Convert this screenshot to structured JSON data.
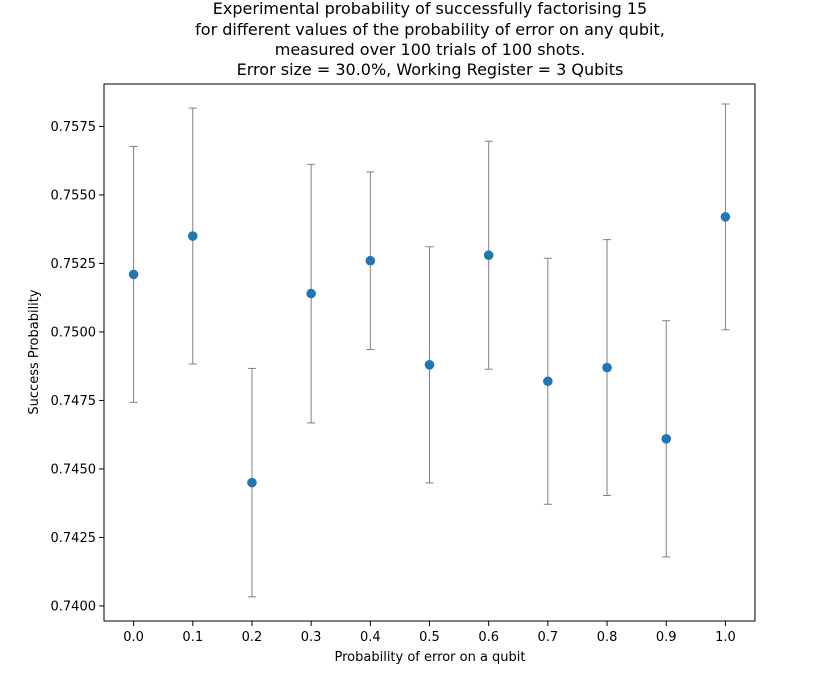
{
  "chart_data": {
    "type": "scatter",
    "title_lines": [
      "Experimental probability of successfully factorising 15",
      "for different values of the probability of error on any qubit,",
      "measured over 100 trials of 100 shots.",
      "Error size = 30.0%, Working Register = 3 Qubits"
    ],
    "xlabel": "Probability of error on a qubit",
    "ylabel": "Success Probability",
    "x_ticks": [
      "0.0",
      "0.1",
      "0.2",
      "0.3",
      "0.4",
      "0.5",
      "0.6",
      "0.7",
      "0.8",
      "0.9",
      "1.0"
    ],
    "y_ticks": [
      "0.7400",
      "0.7425",
      "0.7450",
      "0.7475",
      "0.7500",
      "0.7525",
      "0.7550",
      "0.7575"
    ],
    "xlim": [
      -0.05,
      1.05
    ],
    "ylim": [
      0.73945,
      0.75905
    ],
    "grid": false,
    "legend": "none",
    "point_color": "#1f77b4",
    "errorbar_color": "#808080",
    "points": [
      {
        "x": 0.0,
        "y": 0.7521,
        "err": 0.00467
      },
      {
        "x": 0.1,
        "y": 0.7535,
        "err": 0.00467
      },
      {
        "x": 0.2,
        "y": 0.7445,
        "err": 0.00417
      },
      {
        "x": 0.3,
        "y": 0.7514,
        "err": 0.00472
      },
      {
        "x": 0.4,
        "y": 0.7526,
        "err": 0.00324
      },
      {
        "x": 0.5,
        "y": 0.7488,
        "err": 0.00431
      },
      {
        "x": 0.6,
        "y": 0.7528,
        "err": 0.00416
      },
      {
        "x": 0.7,
        "y": 0.7482,
        "err": 0.00449
      },
      {
        "x": 0.8,
        "y": 0.7487,
        "err": 0.00467
      },
      {
        "x": 0.9,
        "y": 0.7461,
        "err": 0.00431
      },
      {
        "x": 1.0,
        "y": 0.7542,
        "err": 0.00412
      }
    ]
  }
}
